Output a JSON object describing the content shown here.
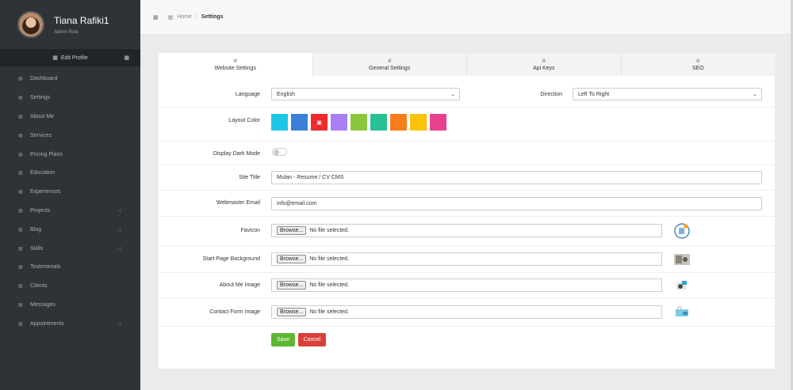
{
  "profile": {
    "name": "Tiana Rafiki1",
    "role": "Admin Role",
    "edit_label": "Edit Profile"
  },
  "menu": [
    {
      "label": "Dashboard",
      "icon": "grid-icon",
      "has_arrow": false
    },
    {
      "label": "Settings",
      "icon": "gear-icon",
      "has_arrow": false
    },
    {
      "label": "About Me",
      "icon": "user-icon",
      "has_arrow": false
    },
    {
      "label": "Services",
      "icon": "briefcase-icon",
      "has_arrow": false
    },
    {
      "label": "Pricing Plans",
      "icon": "tag-icon",
      "has_arrow": false
    },
    {
      "label": "Education",
      "icon": "graduation-icon",
      "has_arrow": false
    },
    {
      "label": "Experiences",
      "icon": "star-icon",
      "has_arrow": false
    },
    {
      "label": "Projects",
      "icon": "folder-icon",
      "has_arrow": true
    },
    {
      "label": "Blog",
      "icon": "pencil-icon",
      "has_arrow": true
    },
    {
      "label": "Skills",
      "icon": "chart-icon",
      "has_arrow": true
    },
    {
      "label": "Testimonials",
      "icon": "comment-icon",
      "has_arrow": false
    },
    {
      "label": "Clients",
      "icon": "users-icon",
      "has_arrow": false
    },
    {
      "label": "Messages",
      "icon": "envelope-icon",
      "has_arrow": false
    },
    {
      "label": "Appointments",
      "icon": "calendar-icon",
      "has_arrow": true
    }
  ],
  "breadcrumb": {
    "home": "Home",
    "separator": "/",
    "current": "Settings"
  },
  "tabs": [
    "Website Settings",
    "General Settings",
    "Api Keys",
    "SEO"
  ],
  "form": {
    "language": {
      "label": "Language",
      "value": "English"
    },
    "direction": {
      "label": "Direction",
      "value": "Left To Right"
    },
    "layout_color": {
      "label": "Layout Color",
      "colors": [
        "#1ec6e6",
        "#3b80d8",
        "#ee2a2a",
        "#a97ff5",
        "#8cc63e",
        "#26c196",
        "#f77d1a",
        "#fbc20c",
        "#e6418c"
      ],
      "selected_index": 2
    },
    "dark_mode": {
      "label": "Display Dark Mode",
      "enabled": false
    },
    "site_title": {
      "label": "Site Title",
      "value": "Mulan - Resume / CV CMS"
    },
    "webmaster_email": {
      "label": "Webmaster Email",
      "value": "info@email.com"
    },
    "files": [
      {
        "label": "Favicon",
        "button": "Browse...",
        "status": "No file selected.",
        "thumb": "favicon"
      },
      {
        "label": "Start Page Background",
        "button": "Browse...",
        "status": "No file selected.",
        "thumb": "background"
      },
      {
        "label": "About Me Image",
        "button": "Browse...",
        "status": "No file selected.",
        "thumb": "aboutme"
      },
      {
        "label": "Contact Form Image",
        "button": "Browse...",
        "status": "No file selected.",
        "thumb": "contact"
      }
    ],
    "save_label": "Save",
    "cancel_label": "Cancel",
    "save_color": "#5cb833",
    "cancel_color": "#d9403a"
  }
}
